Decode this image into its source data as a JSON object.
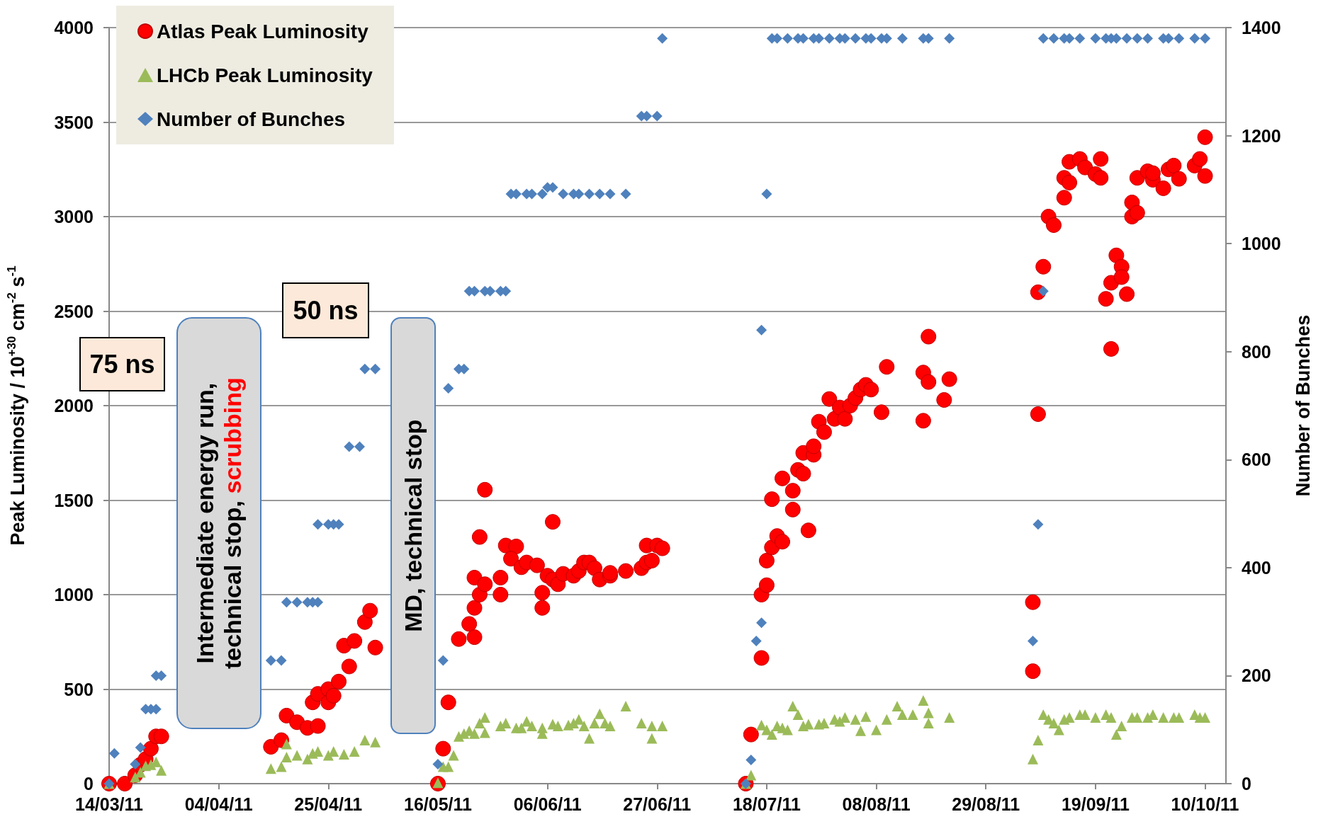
{
  "chart_data": {
    "type": "scatter",
    "ylabel": "Peak Luminosity / 10$^{+30}$ cm$^{-2}$ s$^{-1}$",
    "y2label": "Number of Bunches",
    "xlim": [
      "2011-03-14",
      "2011-10-14"
    ],
    "xticks": [
      {
        "value": "2011-03-14",
        "label": "14/03/11"
      },
      {
        "value": "2011-04-04",
        "label": "04/04/11"
      },
      {
        "value": "2011-04-25",
        "label": "25/04/11"
      },
      {
        "value": "2011-05-16",
        "label": "16/05/11"
      },
      {
        "value": "2011-06-06",
        "label": "06/06/11"
      },
      {
        "value": "2011-06-27",
        "label": "27/06/11"
      },
      {
        "value": "2011-07-18",
        "label": "18/07/11"
      },
      {
        "value": "2011-08-08",
        "label": "08/08/11"
      },
      {
        "value": "2011-08-29",
        "label": "29/08/11"
      },
      {
        "value": "2011-09-19",
        "label": "19/09/11"
      },
      {
        "value": "2011-10-10",
        "label": "10/10/11"
      }
    ],
    "ylim": [
      0,
      4000
    ],
    "yticks": [
      0,
      500,
      1000,
      1500,
      2000,
      2500,
      3000,
      3500,
      4000
    ],
    "y2lim": [
      0,
      1400
    ],
    "y2ticks": [
      0,
      200,
      400,
      600,
      800,
      1000,
      1200,
      1400
    ],
    "grid": "y",
    "legend": "top left",
    "annotations": [
      "75 ns",
      "50 ns",
      "Intermediate energy run, technical stop,",
      "scrubbing",
      "MD, technical stop"
    ],
    "series": [
      {
        "name": "Atlas Peak Luminosity",
        "color": "#ff0000",
        "marker": "circle",
        "x": [
          "2011-03-14",
          "2011-03-17",
          "2011-03-19",
          "2011-03-20",
          "2011-03-21",
          "2011-03-22",
          "2011-03-23",
          "2011-03-24",
          "2011-04-14",
          "2011-04-16",
          "2011-04-17",
          "2011-04-19",
          "2011-04-21",
          "2011-04-22",
          "2011-04-23",
          "2011-04-23",
          "2011-04-25",
          "2011-04-25",
          "2011-04-26",
          "2011-04-27",
          "2011-04-29",
          "2011-04-28",
          "2011-04-30",
          "2011-05-02",
          "2011-05-03",
          "2011-05-04",
          "2011-05-16",
          "2011-05-17",
          "2011-05-18",
          "2011-05-20",
          "2011-05-22",
          "2011-05-23",
          "2011-05-23",
          "2011-05-23",
          "2011-05-24",
          "2011-05-24",
          "2011-05-25",
          "2011-05-25",
          "2011-05-28",
          "2011-05-28",
          "2011-05-29",
          "2011-05-31",
          "2011-05-30",
          "2011-06-01",
          "2011-06-02",
          "2011-06-04",
          "2011-06-05",
          "2011-06-05",
          "2011-06-06",
          "2011-06-07",
          "2011-06-07",
          "2011-06-08",
          "2011-06-09",
          "2011-06-11",
          "2011-06-12",
          "2011-06-13",
          "2011-06-14",
          "2011-06-15",
          "2011-06-16",
          "2011-06-18",
          "2011-06-18",
          "2011-06-21",
          "2011-06-24",
          "2011-06-25",
          "2011-06-25",
          "2011-06-26",
          "2011-06-27",
          "2011-06-28",
          "2011-07-14",
          "2011-07-15",
          "2011-07-17",
          "2011-07-17",
          "2011-07-18",
          "2011-07-18",
          "2011-07-19",
          "2011-07-19",
          "2011-07-20",
          "2011-07-21",
          "2011-07-21",
          "2011-07-23",
          "2011-07-23",
          "2011-07-24",
          "2011-07-25",
          "2011-07-25",
          "2011-07-26",
          "2011-07-27",
          "2011-07-27",
          "2011-07-28",
          "2011-07-29",
          "2011-07-30",
          "2011-07-31",
          "2011-08-01",
          "2011-08-02",
          "2011-08-03",
          "2011-08-04",
          "2011-08-05",
          "2011-08-06",
          "2011-08-07",
          "2011-08-09",
          "2011-08-10",
          "2011-08-17",
          "2011-08-18",
          "2011-08-17",
          "2011-08-18",
          "2011-08-21",
          "2011-08-22",
          "2011-09-07",
          "2011-09-07",
          "2011-09-08",
          "2011-09-08",
          "2011-09-09",
          "2011-09-10",
          "2011-09-11",
          "2011-09-13",
          "2011-09-13",
          "2011-09-14",
          "2011-09-14",
          "2011-09-16",
          "2011-09-17",
          "2011-09-19",
          "2011-09-20",
          "2011-09-20",
          "2011-09-21",
          "2011-09-22",
          "2011-09-22",
          "2011-09-23",
          "2011-09-24",
          "2011-09-24",
          "2011-09-25",
          "2011-09-26",
          "2011-09-26",
          "2011-09-27",
          "2011-09-27",
          "2011-09-29",
          "2011-09-30",
          "2011-09-30",
          "2011-10-02",
          "2011-10-03",
          "2011-10-04",
          "2011-10-05",
          "2011-10-08",
          "2011-10-09",
          "2011-10-10",
          "2011-10-10"
        ],
        "values": [
          0,
          0,
          45,
          100,
          130,
          185,
          250,
          250,
          195,
          230,
          360,
          325,
          295,
          430,
          305,
          475,
          500,
          430,
          465,
          540,
          620,
          730,
          755,
          855,
          915,
          720,
          0,
          185,
          430,
          765,
          845,
          930,
          775,
          1090,
          1305,
          1000,
          1055,
          1555,
          1090,
          1000,
          1260,
          1255,
          1190,
          1145,
          1170,
          1155,
          1010,
          930,
          1100,
          1385,
          1080,
          1055,
          1110,
          1100,
          1125,
          1170,
          1170,
          1140,
          1080,
          1100,
          1115,
          1125,
          1140,
          1260,
          1170,
          1180,
          1260,
          1245,
          0,
          260,
          665,
          1000,
          1050,
          1180,
          1250,
          1505,
          1310,
          1615,
          1280,
          1550,
          1450,
          1660,
          1750,
          1640,
          1340,
          1740,
          1785,
          1915,
          1860,
          2035,
          1930,
          1990,
          1930,
          2000,
          2040,
          2085,
          2110,
          2085,
          1965,
          2205,
          2175,
          2125,
          1920,
          2365,
          2030,
          2140,
          595,
          960,
          1955,
          2600,
          2735,
          3000,
          2955,
          3100,
          3205,
          3290,
          3180,
          3305,
          3260,
          3225,
          3305,
          3205,
          2565,
          2650,
          2300,
          2795,
          2735,
          2680,
          2590,
          3000,
          3075,
          3020,
          3205,
          3240,
          3195,
          3230,
          3150,
          3250,
          3270,
          3200,
          3270,
          3305,
          3420,
          3215
        ]
      },
      {
        "name": "LHCb Peak Luminosity",
        "color": "#9bbb59",
        "marker": "triangle",
        "x": [
          "2011-03-14",
          "2011-03-19",
          "2011-03-20",
          "2011-03-21",
          "2011-03-22",
          "2011-03-23",
          "2011-03-24",
          "2011-04-14",
          "2011-04-16",
          "2011-04-17",
          "2011-04-17",
          "2011-04-19",
          "2011-04-21",
          "2011-04-22",
          "2011-04-23",
          "2011-04-25",
          "2011-04-26",
          "2011-04-28",
          "2011-04-30",
          "2011-05-02",
          "2011-05-04",
          "2011-05-16",
          "2011-05-17",
          "2011-05-18",
          "2011-05-19",
          "2011-05-20",
          "2011-05-21",
          "2011-05-22",
          "2011-05-23",
          "2011-05-24",
          "2011-05-25",
          "2011-05-25",
          "2011-05-28",
          "2011-05-29",
          "2011-05-31",
          "2011-06-01",
          "2011-06-02",
          "2011-06-03",
          "2011-06-05",
          "2011-06-05",
          "2011-06-07",
          "2011-06-08",
          "2011-06-10",
          "2011-06-11",
          "2011-06-12",
          "2011-06-13",
          "2011-06-14",
          "2011-06-15",
          "2011-06-16",
          "2011-06-17",
          "2011-06-18",
          "2011-06-21",
          "2011-06-24",
          "2011-06-26",
          "2011-06-26",
          "2011-06-28",
          "2011-07-14",
          "2011-07-15",
          "2011-07-17",
          "2011-07-18",
          "2011-07-19",
          "2011-07-20",
          "2011-07-21",
          "2011-07-22",
          "2011-07-23",
          "2011-07-24",
          "2011-07-25",
          "2011-07-26",
          "2011-07-28",
          "2011-07-29",
          "2011-07-31",
          "2011-08-01",
          "2011-08-02",
          "2011-08-04",
          "2011-08-05",
          "2011-08-06",
          "2011-08-08",
          "2011-08-10",
          "2011-08-12",
          "2011-08-13",
          "2011-08-15",
          "2011-08-17",
          "2011-08-18",
          "2011-08-18",
          "2011-08-22",
          "2011-09-07",
          "2011-09-08",
          "2011-09-09",
          "2011-09-10",
          "2011-09-11",
          "2011-09-12",
          "2011-09-13",
          "2011-09-14",
          "2011-09-16",
          "2011-09-17",
          "2011-09-19",
          "2011-09-21",
          "2011-09-22",
          "2011-09-23",
          "2011-09-24",
          "2011-09-26",
          "2011-09-27",
          "2011-09-29",
          "2011-09-30",
          "2011-10-02",
          "2011-10-04",
          "2011-10-05",
          "2011-10-08",
          "2011-10-09",
          "2011-10-10"
        ],
        "values": [
          0,
          35,
          60,
          95,
          100,
          115,
          70,
          80,
          90,
          140,
          210,
          150,
          130,
          160,
          170,
          150,
          170,
          155,
          170,
          230,
          220,
          5,
          90,
          90,
          150,
          250,
          265,
          280,
          265,
          320,
          350,
          270,
          305,
          320,
          295,
          295,
          330,
          305,
          265,
          295,
          315,
          305,
          310,
          320,
          340,
          305,
          240,
          320,
          370,
          320,
          305,
          410,
          320,
          240,
          305,
          305,
          0,
          45,
          310,
          285,
          260,
          305,
          295,
          285,
          410,
          365,
          305,
          315,
          315,
          320,
          340,
          330,
          350,
          340,
          280,
          355,
          285,
          340,
          410,
          365,
          365,
          440,
          375,
          320,
          350,
          130,
          230,
          365,
          340,
          320,
          285,
          340,
          350,
          365,
          365,
          350,
          365,
          350,
          260,
          305,
          350,
          350,
          350,
          365,
          350,
          350,
          350,
          365,
          350,
          350
        ]
      },
      {
        "name": "Number of Bunches",
        "color": "#4f81bd",
        "marker": "diamond",
        "axis": "y2",
        "x": [
          "2011-03-14",
          "2011-03-15",
          "2011-03-19",
          "2011-03-20",
          "2011-03-21",
          "2011-03-22",
          "2011-03-23",
          "2011-03-23",
          "2011-03-24",
          "2011-04-14",
          "2011-04-16",
          "2011-04-17",
          "2011-04-19",
          "2011-04-21",
          "2011-04-22",
          "2011-04-23",
          "2011-04-23",
          "2011-04-25",
          "2011-04-26",
          "2011-04-27",
          "2011-04-29",
          "2011-05-01",
          "2011-05-02",
          "2011-05-04",
          "2011-05-16",
          "2011-05-17",
          "2011-05-18",
          "2011-05-20",
          "2011-05-21",
          "2011-05-22",
          "2011-05-23",
          "2011-05-25",
          "2011-05-26",
          "2011-05-28",
          "2011-05-29",
          "2011-05-30",
          "2011-05-31",
          "2011-06-02",
          "2011-06-03",
          "2011-06-05",
          "2011-06-06",
          "2011-06-07",
          "2011-06-09",
          "2011-06-11",
          "2011-06-12",
          "2011-06-14",
          "2011-06-16",
          "2011-06-18",
          "2011-06-21",
          "2011-06-24",
          "2011-06-25",
          "2011-06-27",
          "2011-06-28",
          "2011-07-14",
          "2011-07-15",
          "2011-07-16",
          "2011-07-17",
          "2011-07-17",
          "2011-07-18",
          "2011-07-19",
          "2011-07-20",
          "2011-07-22",
          "2011-07-24",
          "2011-07-25",
          "2011-07-27",
          "2011-07-28",
          "2011-07-30",
          "2011-08-01",
          "2011-08-02",
          "2011-08-04",
          "2011-08-06",
          "2011-08-07",
          "2011-08-09",
          "2011-08-10",
          "2011-08-13",
          "2011-08-17",
          "2011-08-18",
          "2011-08-22",
          "2011-09-07",
          "2011-09-08",
          "2011-09-09",
          "2011-09-09",
          "2011-09-11",
          "2011-09-13",
          "2011-09-14",
          "2011-09-16",
          "2011-09-19",
          "2011-09-21",
          "2011-09-22",
          "2011-09-23",
          "2011-09-25",
          "2011-09-27",
          "2011-09-29",
          "2011-10-02",
          "2011-10-03",
          "2011-10-05",
          "2011-10-08",
          "2011-10-10"
        ],
        "values": [
          0,
          56,
          36,
          67,
          138,
          138,
          138,
          200,
          200,
          228,
          228,
          336,
          336,
          336,
          336,
          336,
          480,
          480,
          480,
          480,
          624,
          624,
          768,
          768,
          36,
          228,
          732,
          768,
          768,
          912,
          912,
          912,
          912,
          912,
          912,
          1092,
          1092,
          1092,
          1092,
          1092,
          1104,
          1104,
          1092,
          1092,
          1092,
          1092,
          1092,
          1092,
          1092,
          1236,
          1236,
          1236,
          1380,
          0,
          44,
          264,
          298,
          840,
          1092,
          1380,
          1380,
          1380,
          1380,
          1380,
          1380,
          1380,
          1380,
          1380,
          1380,
          1380,
          1380,
          1380,
          1380,
          1380,
          1380,
          1380,
          1380,
          1380,
          264,
          480,
          912,
          1380,
          1380,
          1380,
          1380,
          1380,
          1380,
          1380,
          1380,
          1380,
          1380,
          1380,
          1380,
          1380,
          1380,
          1380,
          1380,
          1380
        ]
      }
    ]
  }
}
